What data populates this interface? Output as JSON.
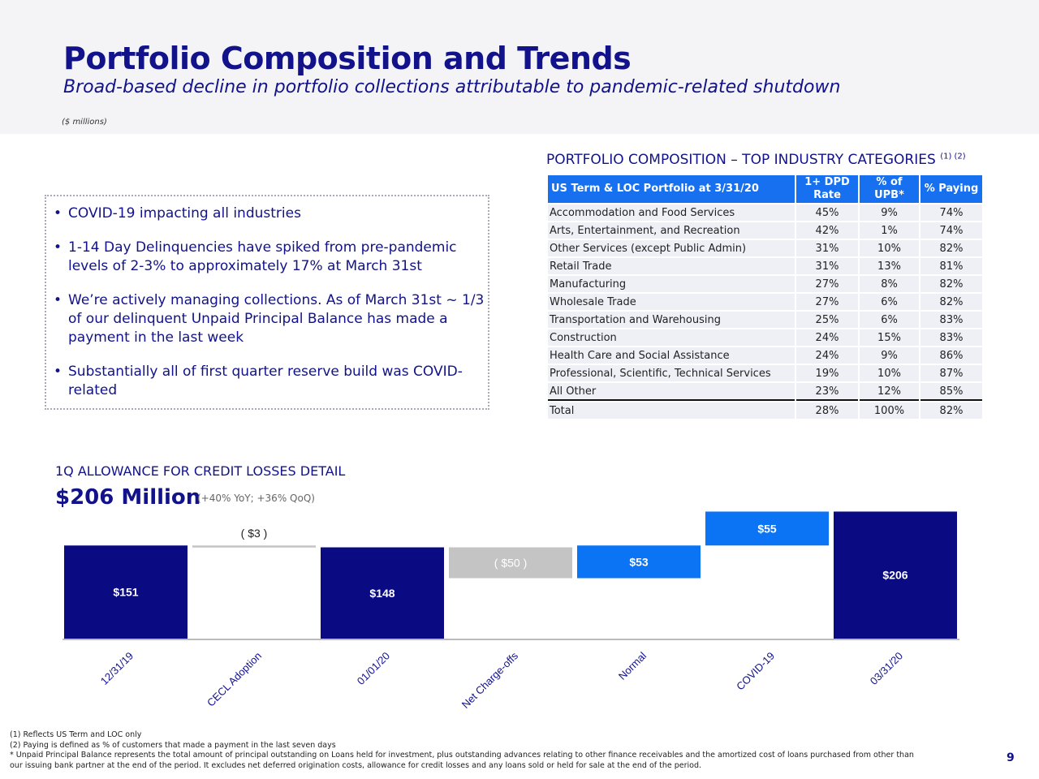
{
  "header": {
    "title": "Portfolio Composition and Trends",
    "subtitle": "Broad-based decline in portfolio collections attributable to pandemic-related shutdown",
    "units": "($ millions)"
  },
  "bullets": [
    "COVID-19 impacting all industries",
    "1-14 Day Delinquencies have spiked from pre-pandemic levels of 2-3% to approximately 17% at March 31st",
    "We’re actively managing collections.  As of March 31st ~ 1/3 of our delinquent Unpaid Principal Balance has made a payment in the last week",
    "Substantially all of first quarter reserve build was COVID-related"
  ],
  "portfolio": {
    "title": "PORTFOLIO COMPOSITION – TOP INDUSTRY CATEGORIES",
    "title_notes": "(1) (2)",
    "headers": [
      "US Term & LOC Portfolio at 3/31/20",
      "1+ DPD Rate",
      "% of UPB*",
      "% Paying"
    ],
    "rows": [
      [
        "Accommodation and Food Services",
        "45%",
        "9%",
        "74%"
      ],
      [
        "Arts, Entertainment, and Recreation",
        "42%",
        "1%",
        "74%"
      ],
      [
        "Other Services (except Public Admin)",
        "31%",
        "10%",
        "82%"
      ],
      [
        "Retail Trade",
        "31%",
        "13%",
        "81%"
      ],
      [
        "Manufacturing",
        "27%",
        "8%",
        "82%"
      ],
      [
        "Wholesale Trade",
        "27%",
        "6%",
        "82%"
      ],
      [
        "Transportation and Warehousing",
        "25%",
        "6%",
        "83%"
      ],
      [
        "Construction",
        "24%",
        "15%",
        "83%"
      ],
      [
        "Health Care and Social Assistance",
        "24%",
        "9%",
        "86%"
      ],
      [
        "Professional, Scientific, Technical Services",
        "19%",
        "10%",
        "87%"
      ],
      [
        "All Other",
        "23%",
        "12%",
        "85%"
      ],
      [
        "Total",
        "28%",
        "100%",
        "82%"
      ]
    ],
    "colors": {
      "header": "#1670f0",
      "row": "#eef0f6"
    }
  },
  "allowance": {
    "title": "1Q ALLOWANCE FOR CREDIT LOSSES DETAIL",
    "headline": "$206 Million",
    "note": "(+40% YoY; +36% QoQ)"
  },
  "chart_data": {
    "type": "bar",
    "subtype": "waterfall",
    "categories": [
      "12/31/19",
      "CECL Adoption",
      "01/01/20",
      "Net Charge-offs",
      "Normal",
      "COVID-19",
      "03/31/20"
    ],
    "values": [
      151,
      -3,
      148,
      -50,
      53,
      55,
      206
    ],
    "kinds": [
      "total",
      "delta",
      "total",
      "delta",
      "delta",
      "delta",
      "total"
    ],
    "labels": [
      "$151",
      "( $3 )",
      "$148",
      "( $50 )",
      "$53",
      "$55",
      "$206"
    ],
    "colors": {
      "total": "#0a0a82",
      "decrease": "#c4c4c4",
      "increase": "#0b74f5"
    },
    "grid": false
  },
  "footnotes": [
    "(1) Reflects US Term and LOC only",
    "(2) Paying is defined as % of customers that made a payment in the last seven days",
    "* Unpaid Principal Balance represents the total amount of principal outstanding on Loans held for investment, plus outstanding advances relating to other finance receivables and the amortized cost of loans purchased from other than our issuing bank partner at the end of the period. It excludes net deferred origination costs, allowance for credit losses and any loans sold or held for sale at the end of the period."
  ],
  "page_number": "9"
}
